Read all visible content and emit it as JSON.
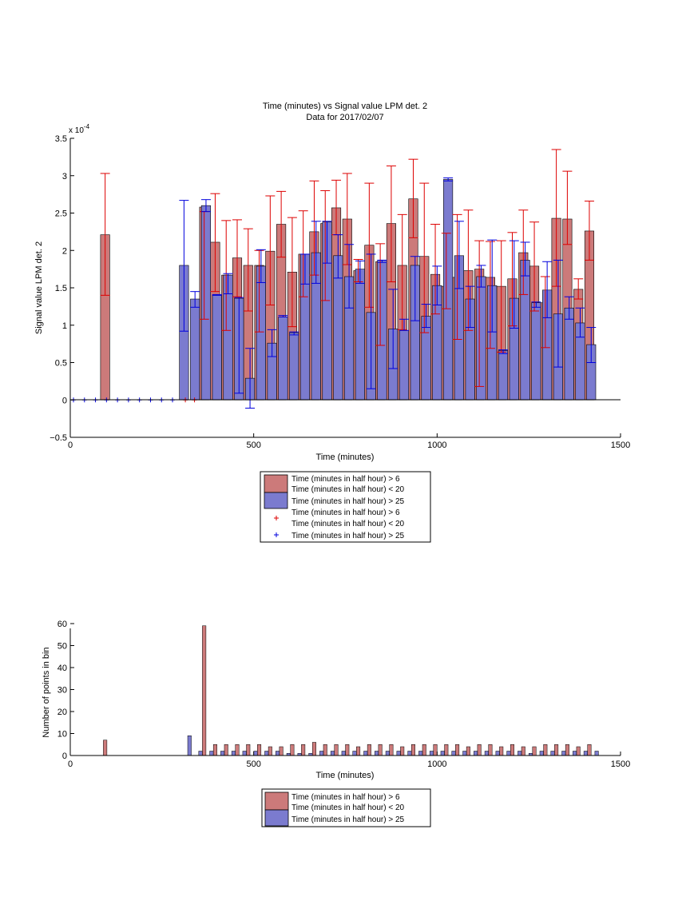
{
  "figure": {
    "title_line1": "Time (minutes) vs Signal value LPM det. 2",
    "title_line2": "Data for 2017/02/07"
  },
  "colors": {
    "red_bar": "#cc7a7a",
    "blue_bar": "#7b7bcf",
    "red_err": "#dd0000",
    "blue_err": "#0000dd"
  },
  "chart_data": [
    {
      "type": "bar",
      "title": "Time (minutes) vs Signal value LPM det. 2",
      "subtitle": "Data for 2017/02/07",
      "xlabel": "Time (minutes)",
      "ylabel": "Signal value LPM det. 2",
      "exponent_label": "x 10",
      "exponent_power": "-4",
      "xlim": [
        0,
        1500
      ],
      "ylim": [
        -0.5,
        3.5
      ],
      "xticks": [
        0,
        500,
        1000,
        1500
      ],
      "yticks": [
        -0.5,
        0,
        0.5,
        1,
        1.5,
        2,
        2.5,
        3,
        3.5
      ],
      "ytick_labels": [
        "−0.5",
        "0",
        "0.5",
        "1",
        "1.5",
        "2",
        "2.5",
        "3",
        "3.5"
      ],
      "grid": false,
      "legend_position": "below",
      "legend": [
        "Time (minutes in half hour) > 6",
        "Time (minutes in half hour) < 20",
        "Time (minutes in half hour) > 25",
        "Time (minutes in half hour) > 6",
        "Time (minutes in half hour) < 20",
        "Time (minutes in half hour) > 25"
      ],
      "series": [
        {
          "x": [
            95,
            365,
            395,
            425,
            455,
            485,
            515,
            545,
            575,
            605,
            635,
            665,
            695,
            725,
            755,
            785,
            815,
            845,
            875,
            905,
            935,
            965,
            995,
            1025,
            1055,
            1085,
            1115,
            1145,
            1175,
            1205,
            1235,
            1265,
            1295,
            1325,
            1355,
            1385,
            1415
          ],
          "values": [
            2.21,
            2.58,
            2.11,
            1.67,
            1.9,
            1.8,
            1.8,
            1.99,
            2.35,
            1.71,
            1.95,
            2.25,
            2.36,
            2.57,
            2.42,
            1.73,
            2.07,
            1.85,
            2.36,
            1.8,
            2.69,
            1.92,
            1.68,
            1.52,
            1.64,
            1.73,
            1.75,
            1.64,
            1.52,
            1.62,
            1.97,
            1.79,
            1.3,
            2.43,
            2.42,
            1.48,
            2.26
          ],
          "err_low": [
            1.4,
            1.08,
            1.45,
            0.93,
            1.38,
            1.19,
            0.91,
            1.27,
            1.91,
            0.98,
            1.38,
            1.67,
            1.33,
            2.21,
            1.81,
            1.58,
            1.24,
            0.73,
            1.58,
            0.94,
            2.17,
            0.9,
            1.15,
            1.22,
            0.81,
            0.93,
            0.18,
            0.69,
            0.64,
            0.99,
            1.41,
            1.19,
            0.7,
            1.52,
            2.08,
            1.35,
            1.87
          ],
          "err_high": [
            3.03,
            2.52,
            2.76,
            2.4,
            2.41,
            2.29,
            2.0,
            2.73,
            2.79,
            2.44,
            2.53,
            2.93,
            2.8,
            2.94,
            3.03,
            1.88,
            2.9,
            2.09,
            3.13,
            2.48,
            3.22,
            2.9,
            2.35,
            2.23,
            2.48,
            2.54,
            2.13,
            2.12,
            2.13,
            2.24,
            2.54,
            2.38,
            1.65,
            3.35,
            3.06,
            1.62,
            2.66
          ]
        },
        {
          "x": [
            310,
            340,
            370,
            400,
            430,
            460,
            490,
            520,
            550,
            580,
            610,
            640,
            670,
            700,
            730,
            760,
            790,
            820,
            850,
            880,
            910,
            940,
            970,
            1000,
            1030,
            1060,
            1090,
            1120,
            1150,
            1180,
            1210,
            1240,
            1270,
            1300,
            1330,
            1360,
            1390,
            1420
          ],
          "values": [
            1.8,
            1.35,
            2.6,
            1.4,
            1.67,
            1.36,
            0.29,
            1.79,
            0.76,
            1.11,
            0.9,
            1.95,
            1.97,
            2.38,
            1.93,
            1.65,
            1.75,
            1.17,
            1.87,
            0.95,
            0.93,
            1.8,
            1.12,
            1.53,
            2.95,
            1.93,
            1.35,
            1.65,
            1.53,
            0.66,
            1.36,
            1.87,
            1.3,
            1.47,
            1.15,
            1.23,
            1.03,
            0.74
          ],
          "err_low": [
            0.92,
            1.24,
            2.52,
            1.4,
            1.42,
            0.09,
            -0.11,
            1.57,
            0.58,
            1.11,
            0.87,
            1.55,
            1.56,
            1.83,
            1.63,
            1.23,
            1.56,
            0.15,
            1.84,
            0.42,
            0.93,
            1.06,
            0.97,
            1.27,
            2.93,
            1.49,
            0.97,
            1.51,
            0.91,
            0.62,
            0.96,
            1.66,
            1.24,
            1.1,
            0.44,
            1.08,
            0.84,
            0.5
          ],
          "err_high": [
            2.67,
            1.45,
            2.68,
            1.41,
            1.69,
            1.37,
            0.69,
            2.01,
            0.94,
            1.13,
            0.91,
            1.95,
            2.39,
            2.39,
            2.21,
            2.08,
            1.86,
            1.95,
            1.87,
            1.48,
            1.08,
            1.92,
            1.28,
            1.79,
            2.97,
            2.39,
            1.52,
            1.8,
            2.14,
            0.67,
            2.13,
            2.11,
            1.31,
            1.85,
            1.87,
            1.38,
            1.23,
            0.97
          ]
        }
      ],
      "zero_markers": {
        "blue_x": [
          0,
          30,
          60,
          90,
          120,
          150,
          180,
          210,
          240,
          270
        ],
        "red_x": [
          305,
          330
        ]
      }
    },
    {
      "type": "bar",
      "xlabel": "Time (minutes)",
      "ylabel": "Number of points in bin",
      "xlim": [
        0,
        1500
      ],
      "ylim": [
        0,
        60
      ],
      "xticks": [
        0,
        500,
        1000,
        1500
      ],
      "yticks": [
        0,
        10,
        20,
        30,
        40,
        50,
        60
      ],
      "grid": false,
      "legend_position": "below",
      "legend": [
        "Time (minutes in half hour) > 6",
        "Time (minutes in half hour) < 20",
        "Time (minutes in half hour) > 25"
      ],
      "series": [
        {
          "x": [
            95,
            365,
            395,
            425,
            455,
            485,
            515,
            545,
            575,
            605,
            635,
            665,
            695,
            725,
            755,
            785,
            815,
            845,
            875,
            905,
            935,
            965,
            995,
            1025,
            1055,
            1085,
            1115,
            1145,
            1175,
            1205,
            1235,
            1265,
            1295,
            1325,
            1355,
            1385,
            1415
          ],
          "values": [
            7,
            59,
            5,
            5,
            5,
            5,
            5,
            4,
            4,
            5,
            5,
            6,
            5,
            5,
            5,
            4,
            5,
            5,
            5,
            4,
            5,
            5,
            5,
            5,
            5,
            4,
            5,
            5,
            4,
            5,
            4,
            4,
            5,
            5,
            5,
            4,
            5
          ]
        },
        {
          "x": [
            325,
            355,
            385,
            415,
            445,
            475,
            505,
            535,
            565,
            595,
            625,
            655,
            685,
            715,
            745,
            775,
            805,
            835,
            865,
            895,
            925,
            955,
            985,
            1015,
            1045,
            1075,
            1105,
            1135,
            1165,
            1195,
            1225,
            1255,
            1285,
            1315,
            1345,
            1375,
            1405,
            1435
          ],
          "values": [
            9,
            2,
            2,
            2,
            2,
            2,
            2,
            2,
            2,
            1,
            1,
            1,
            2,
            2,
            2,
            2,
            2,
            2,
            2,
            2,
            2,
            2,
            2,
            2,
            2,
            2,
            2,
            2,
            2,
            2,
            2,
            1,
            2,
            2,
            2,
            2,
            2,
            2
          ]
        }
      ]
    }
  ]
}
